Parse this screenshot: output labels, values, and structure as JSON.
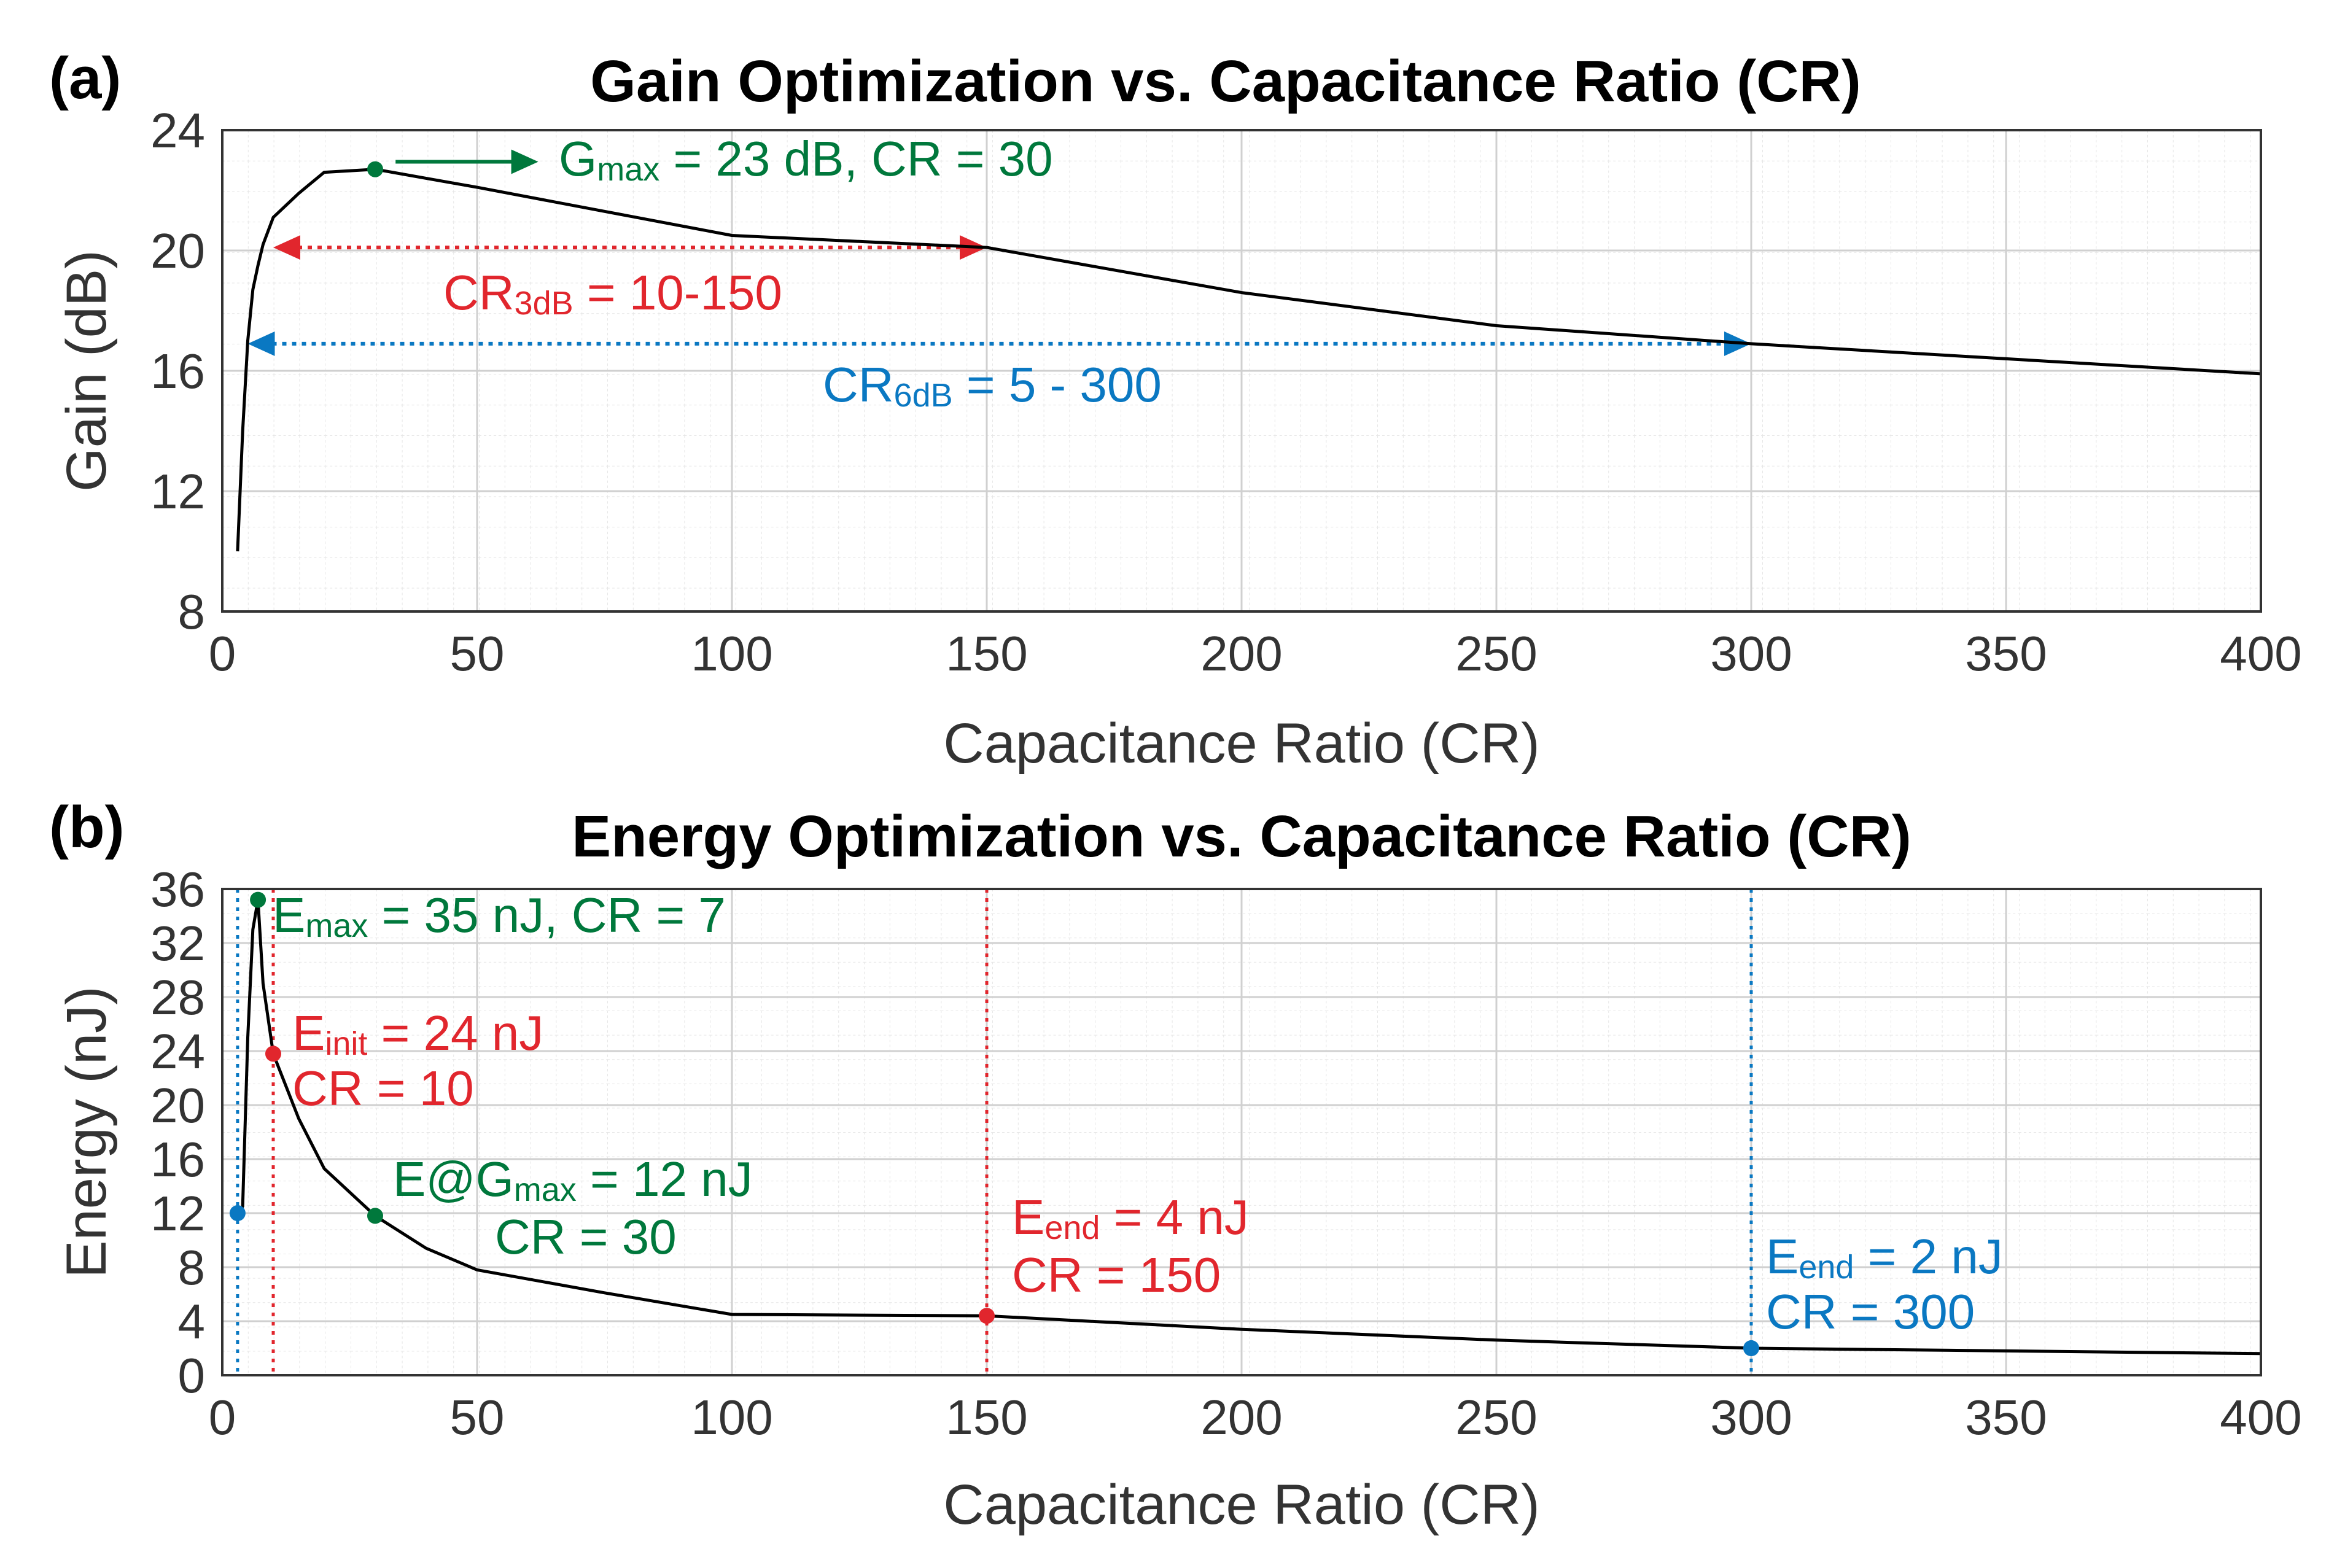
{
  "chart_data": [
    {
      "panel_label": "(a)",
      "type": "line",
      "title": "Gain Optimization vs. Capacitance Ratio (CR)",
      "xlabel": "Capacitance Ratio (CR)",
      "ylabel": "Gain (dB)",
      "xlim": [
        0,
        400
      ],
      "ylim": [
        8,
        24
      ],
      "xticks": [
        0,
        50,
        100,
        150,
        200,
        250,
        300,
        350,
        400
      ],
      "yticks": [
        8,
        12,
        16,
        20,
        24
      ],
      "grid": true,
      "series": [
        {
          "name": "Gain",
          "color": "#000000",
          "x": [
            3,
            4,
            5,
            6,
            7,
            8,
            10,
            15,
            20,
            30,
            40,
            50,
            75,
            100,
            125,
            150,
            200,
            250,
            300,
            350,
            400
          ],
          "y": [
            10,
            14,
            17,
            18.7,
            19.5,
            20.2,
            21.1,
            21.9,
            22.6,
            22.7,
            22.4,
            22.1,
            21.3,
            20.5,
            20.3,
            20.1,
            18.6,
            17.5,
            16.9,
            16.4,
            15.9
          ]
        }
      ],
      "markers": [
        {
          "x": 30,
          "y": 22.7,
          "color": "#00783c"
        }
      ],
      "arrows": [
        {
          "style": "solid",
          "color": "#00783c",
          "x1": 34,
          "x2": 62,
          "y": 22.95,
          "heads": "end"
        },
        {
          "style": "dotted",
          "color": "#e1262d",
          "x1": 10,
          "x2": 150,
          "y": 20.1,
          "heads": "both"
        },
        {
          "style": "dotted",
          "color": "#0a78c2",
          "x1": 5,
          "x2": 300,
          "y": 16.9,
          "heads": "both"
        }
      ],
      "annotations": [
        {
          "color": "#00783c",
          "main": "G",
          "sub": "max",
          "rest": " = 23 dB, CR = 30"
        },
        {
          "color": "#e1262d",
          "main": "CR",
          "sub": "3dB",
          "rest": " = 10-150"
        },
        {
          "color": "#0a78c2",
          "main": "CR",
          "sub": "6dB",
          "rest": " = 5 - 300"
        }
      ]
    },
    {
      "panel_label": "(b)",
      "type": "line",
      "title": "Energy Optimization vs. Capacitance Ratio (CR)",
      "xlabel": "Capacitance Ratio (CR)",
      "ylabel": "Energy (nJ)",
      "xlim": [
        0,
        400
      ],
      "ylim": [
        0,
        36
      ],
      "xticks": [
        0,
        50,
        100,
        150,
        200,
        250,
        300,
        350,
        400
      ],
      "yticks": [
        0,
        4,
        8,
        12,
        16,
        20,
        24,
        28,
        32,
        36
      ],
      "grid": true,
      "series": [
        {
          "name": "Energy",
          "color": "#000000",
          "x": [
            3,
            4,
            5,
            6,
            7,
            8,
            10,
            15,
            20,
            30,
            40,
            50,
            75,
            100,
            150,
            200,
            250,
            300,
            350,
            400
          ],
          "y": [
            12,
            12.5,
            25,
            33,
            35.2,
            29,
            23.8,
            19,
            15.3,
            11.8,
            9.4,
            7.8,
            6.1,
            4.5,
            4.4,
            3.4,
            2.6,
            2,
            1.8,
            1.6
          ]
        }
      ],
      "markers": [
        {
          "x": 3,
          "y": 12,
          "color": "#0a78c2"
        },
        {
          "x": 7,
          "y": 35.2,
          "color": "#00783c"
        },
        {
          "x": 10,
          "y": 23.8,
          "color": "#e1262d"
        },
        {
          "x": 30,
          "y": 11.8,
          "color": "#00783c"
        },
        {
          "x": 150,
          "y": 4.4,
          "color": "#e1262d"
        },
        {
          "x": 300,
          "y": 2,
          "color": "#0a78c2"
        }
      ],
      "vlines": [
        {
          "x": 3,
          "color": "#0a78c2"
        },
        {
          "x": 10,
          "color": "#e1262d"
        },
        {
          "x": 150,
          "color": "#e1262d"
        },
        {
          "x": 300,
          "color": "#0a78c2"
        }
      ],
      "annotations": [
        {
          "color": "#00783c",
          "main": "E",
          "sub": "max",
          "rest": " = 35 nJ, CR = 7"
        },
        {
          "color": "#e1262d",
          "main": "E",
          "sub": "init",
          "rest": " = 24 nJ",
          "line2": "CR = 10"
        },
        {
          "color": "#00783c",
          "main": "E@G",
          "sub": "max",
          "rest": " = 12 nJ",
          "line2": "CR = 30"
        },
        {
          "color": "#e1262d",
          "main": "E",
          "sub": "end",
          "rest": " = 4 nJ",
          "line2": "CR = 150"
        },
        {
          "color": "#0a78c2",
          "main": "E",
          "sub": "end",
          "rest": " = 2 nJ",
          "line2": "CR = 300"
        }
      ]
    }
  ]
}
